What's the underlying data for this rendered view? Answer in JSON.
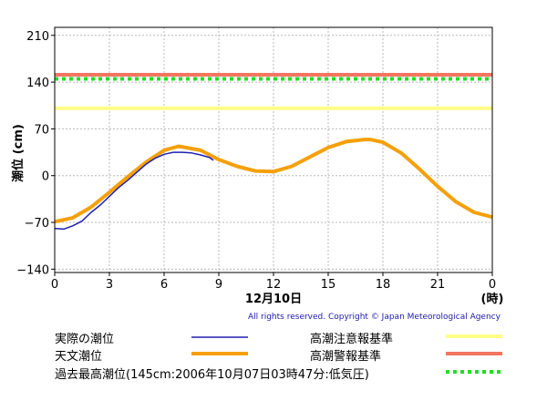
{
  "chart_data": {
    "type": "line",
    "ylabel": "潮位 (cm)",
    "xlabel_date": "12月10日",
    "xlabel_unit": "(時)",
    "ylim": [
      -145,
      222
    ],
    "xlim": [
      0,
      24
    ],
    "y_ticks": [
      "210",
      "140",
      "70",
      "0",
      "−70",
      "−140"
    ],
    "y_tick_values": [
      210,
      140,
      70,
      0,
      -70,
      -140
    ],
    "x_ticks": [
      "0",
      "3",
      "6",
      "9",
      "12",
      "15",
      "18",
      "21",
      "0"
    ],
    "x_tick_values": [
      0,
      3,
      6,
      9,
      12,
      15,
      18,
      21,
      24
    ],
    "grid": true,
    "thresholds": [
      {
        "name": "高潮警報基準",
        "value": 151,
        "color": "#f47560",
        "style": "solid"
      },
      {
        "name": "過去最高潮位",
        "value": 145,
        "color": "#22dd22",
        "style": "dotted"
      },
      {
        "name": "高潮注意報基準",
        "value": 101,
        "color": "#ffff88",
        "style": "solid"
      }
    ],
    "series": [
      {
        "name": "天文潮位",
        "color": "#f5a00a",
        "x": [
          0,
          1,
          2,
          3,
          4,
          5,
          6,
          6.8,
          8,
          9,
          10,
          11,
          12,
          13,
          14,
          15,
          16,
          17,
          17.3,
          18,
          19,
          20,
          21,
          22,
          23,
          24
        ],
        "y": [
          -69,
          -63,
          -47,
          -25,
          -2,
          20,
          38,
          44,
          38,
          24,
          14,
          7,
          6,
          14,
          28,
          42,
          51,
          54,
          54,
          50,
          34,
          10,
          -16,
          -39,
          -55,
          -62
        ]
      },
      {
        "name": "実際の潮位",
        "color": "#2020b0",
        "x": [
          0,
          0.5,
          1,
          1.5,
          2,
          2.5,
          3,
          3.5,
          4,
          4.5,
          5,
          5.5,
          6,
          6.5,
          7,
          7.5,
          8,
          8.5,
          8.7
        ],
        "y": [
          -79,
          -80,
          -75,
          -68,
          -55,
          -44,
          -31,
          -18,
          -7,
          5,
          17,
          26,
          32,
          35,
          35,
          34,
          31,
          27,
          23
        ]
      }
    ]
  },
  "legend": {
    "observed": "実際の潮位",
    "astronomical": "天文潮位",
    "advisory": "高潮注意報基準",
    "warning": "高潮警報基準",
    "record": "過去最高潮位(145cm:2006年10月07日03時47分:低気圧)"
  },
  "copyright": "All rights reserved. Copyright © Japan Meteorological Agency"
}
